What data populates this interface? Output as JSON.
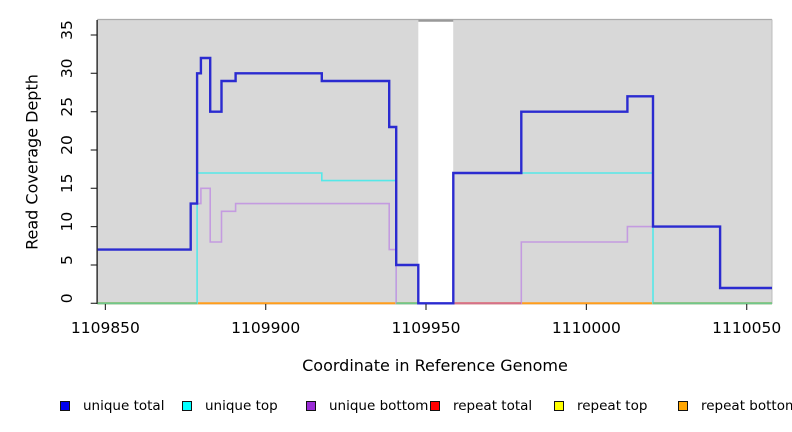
{
  "chart_data": {
    "type": "step-line",
    "title": "",
    "xlabel": "Coordinate in Reference Genome",
    "ylabel": "Read Coverage Depth",
    "xlim": [
      1109847.6,
      1110057.9
    ],
    "ylim": [
      0,
      37
    ],
    "x_ticks": [
      1109850,
      1109900,
      1109950,
      1110000,
      1110050
    ],
    "y_ticks": [
      0,
      5,
      10,
      15,
      20,
      25,
      30,
      35
    ],
    "grid": false,
    "plot_bg": "#d8d8d8",
    "gap_band": {
      "from": 1109947.6,
      "to": 1109958.5,
      "color": "#ffffff",
      "cap_color": "#999999"
    },
    "legend_position": "bottom",
    "legend": [
      {
        "label": "unique total",
        "color": "#0000ee"
      },
      {
        "label": "unique top",
        "color": "#00ffff"
      },
      {
        "label": "unique bottom",
        "color": "#9a2cd6"
      },
      {
        "label": "repeat total",
        "color": "#ff0000"
      },
      {
        "label": "repeat top",
        "color": "#ffff00"
      },
      {
        "label": "repeat bottom",
        "color": "#ffa500"
      }
    ],
    "series": [
      {
        "name": "repeat total",
        "color": "#e00000",
        "width": 1.5,
        "points": [
          [
            1109847.6,
            0
          ],
          [
            1110057.9,
            0
          ]
        ]
      },
      {
        "name": "repeat top",
        "color": "#ffff00",
        "width": 1.5,
        "points": [
          [
            1109847.6,
            0
          ],
          [
            1110057.9,
            0
          ]
        ]
      },
      {
        "name": "repeat bottom",
        "color": "#ff9d1c",
        "width": 2,
        "points": [
          [
            1109847.6,
            0
          ],
          [
            1110057.9,
            0
          ]
        ]
      },
      {
        "name": "unique top",
        "color": "#55e8e8",
        "width": 1.6,
        "points": [
          [
            1109847.6,
            0
          ],
          [
            1109878.6,
            17
          ],
          [
            1109917.5,
            16
          ],
          [
            1109940.7,
            0
          ],
          [
            1109958.5,
            17
          ],
          [
            1110020.8,
            0
          ],
          [
            1110057.9,
            0
          ]
        ]
      },
      {
        "name": "unique bottom",
        "color": "#c49be0",
        "width": 1.6,
        "points": [
          [
            1109847.6,
            7
          ],
          [
            1109876.6,
            13
          ],
          [
            1109879.8,
            15
          ],
          [
            1109882.7,
            8
          ],
          [
            1109886.2,
            12
          ],
          [
            1109890.6,
            13
          ],
          [
            1109938.5,
            7
          ],
          [
            1109940.7,
            0
          ],
          [
            1109979.7,
            8
          ],
          [
            1110012.8,
            10
          ],
          [
            1110041.7,
            2
          ],
          [
            1110057.9,
            2
          ]
        ]
      },
      {
        "name": "unique total",
        "color": "#2b2bd0",
        "width": 2.4,
        "points": [
          [
            1109847.6,
            7
          ],
          [
            1109876.6,
            13
          ],
          [
            1109878.6,
            30
          ],
          [
            1109879.8,
            32
          ],
          [
            1109882.7,
            25
          ],
          [
            1109886.2,
            29
          ],
          [
            1109890.6,
            30
          ],
          [
            1109917.5,
            29
          ],
          [
            1109938.5,
            23
          ],
          [
            1109940.7,
            5
          ],
          [
            1109947.6,
            0
          ],
          [
            1109958.5,
            17
          ],
          [
            1109979.7,
            25
          ],
          [
            1110012.8,
            27
          ],
          [
            1110020.8,
            10
          ],
          [
            1110041.7,
            2
          ],
          [
            1110057.9,
            2
          ]
        ]
      }
    ],
    "baseline_overlays": [
      {
        "from": 1109847.6,
        "to": 1109878.6,
        "color": "#6fc78c"
      },
      {
        "from": 1109940.7,
        "to": 1109947.6,
        "color": "#6fc78c"
      },
      {
        "from": 1109958.5,
        "to": 1109979.7,
        "color": "#d4708c"
      },
      {
        "from": 1110020.8,
        "to": 1110057.9,
        "color": "#6fc78c"
      }
    ]
  }
}
